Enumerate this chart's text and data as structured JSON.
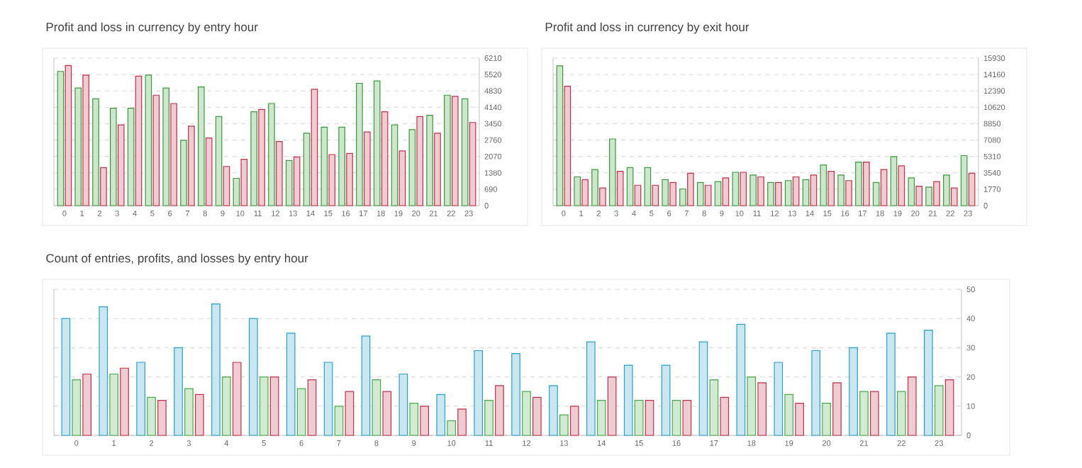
{
  "chart_data": [
    {
      "type": "bar",
      "title": "Profit and loss in currency by entry hour",
      "categories": [
        "0",
        "1",
        "2",
        "3",
        "4",
        "5",
        "6",
        "7",
        "8",
        "9",
        "10",
        "11",
        "12",
        "13",
        "14",
        "15",
        "16",
        "17",
        "18",
        "19",
        "20",
        "21",
        "22",
        "23"
      ],
      "series": [
        {
          "color": "#3a9a3a",
          "values": [
            5650,
            4950,
            4500,
            4100,
            4100,
            5500,
            4950,
            2750,
            5000,
            3750,
            1150,
            3950,
            4300,
            1900,
            3050,
            3300,
            3300,
            5150,
            5250,
            3400,
            3200,
            3800,
            4650,
            4500
          ]
        },
        {
          "color": "#c0304a",
          "values": [
            5900,
            5500,
            1600,
            3400,
            5450,
            4650,
            4300,
            3350,
            2850,
            1650,
            1950,
            4050,
            2700,
            2050,
            4900,
            2150,
            2200,
            3100,
            3950,
            2300,
            3750,
            3050,
            4600,
            3500
          ]
        }
      ],
      "ylim": [
        0,
        6210
      ],
      "yticks": [
        0,
        690,
        1380,
        2070,
        2760,
        3450,
        4140,
        4830,
        5520,
        6210
      ],
      "grid": "y"
    },
    {
      "type": "bar",
      "title": "Profit and loss in currency by exit hour",
      "categories": [
        "0",
        "1",
        "2",
        "3",
        "4",
        "5",
        "6",
        "7",
        "8",
        "9",
        "10",
        "11",
        "12",
        "13",
        "14",
        "15",
        "16",
        "17",
        "18",
        "19",
        "20",
        "21",
        "22",
        "23"
      ],
      "series": [
        {
          "color": "#3a9a3a",
          "values": [
            15100,
            3100,
            3900,
            7200,
            4100,
            4100,
            2800,
            1800,
            2500,
            2600,
            3600,
            3300,
            2500,
            2700,
            2800,
            4400,
            3300,
            4700,
            2500,
            5300,
            3000,
            2000,
            3300,
            5400
          ]
        },
        {
          "color": "#c0304a",
          "values": [
            12900,
            2800,
            1900,
            3700,
            2200,
            2200,
            2500,
            3500,
            2200,
            3000,
            3600,
            3100,
            2500,
            3100,
            3300,
            3700,
            2700,
            4700,
            3900,
            4300,
            2100,
            2600,
            1900,
            3500
          ]
        }
      ],
      "ylim": [
        0,
        15930
      ],
      "yticks": [
        0,
        1770,
        3540,
        5310,
        7080,
        8850,
        10620,
        12390,
        14160,
        15930
      ],
      "grid": "y"
    },
    {
      "type": "bar",
      "title": "Count of entries, profits, and losses by entry hour",
      "categories": [
        "0",
        "1",
        "2",
        "3",
        "4",
        "5",
        "6",
        "7",
        "8",
        "9",
        "10",
        "11",
        "12",
        "13",
        "14",
        "15",
        "16",
        "17",
        "18",
        "19",
        "20",
        "21",
        "22",
        "23"
      ],
      "series": [
        {
          "color": "#2aa0c8",
          "values": [
            40,
            44,
            25,
            30,
            45,
            40,
            35,
            25,
            34,
            21,
            14,
            29,
            28,
            17,
            32,
            24,
            24,
            32,
            38,
            25,
            29,
            30,
            35,
            36
          ]
        },
        {
          "color": "#4aaa4a",
          "values": [
            19,
            21,
            13,
            16,
            20,
            20,
            16,
            10,
            19,
            11,
            5,
            12,
            15,
            7,
            12,
            12,
            12,
            19,
            20,
            14,
            11,
            15,
            15,
            17
          ]
        },
        {
          "color": "#c0304a",
          "values": [
            21,
            23,
            12,
            14,
            25,
            20,
            19,
            15,
            15,
            10,
            9,
            17,
            13,
            10,
            20,
            12,
            12,
            13,
            18,
            11,
            18,
            15,
            20,
            19
          ]
        }
      ],
      "ylim": [
        0,
        50
      ],
      "yticks": [
        0,
        10,
        20,
        30,
        40,
        50
      ],
      "grid": "y"
    }
  ]
}
